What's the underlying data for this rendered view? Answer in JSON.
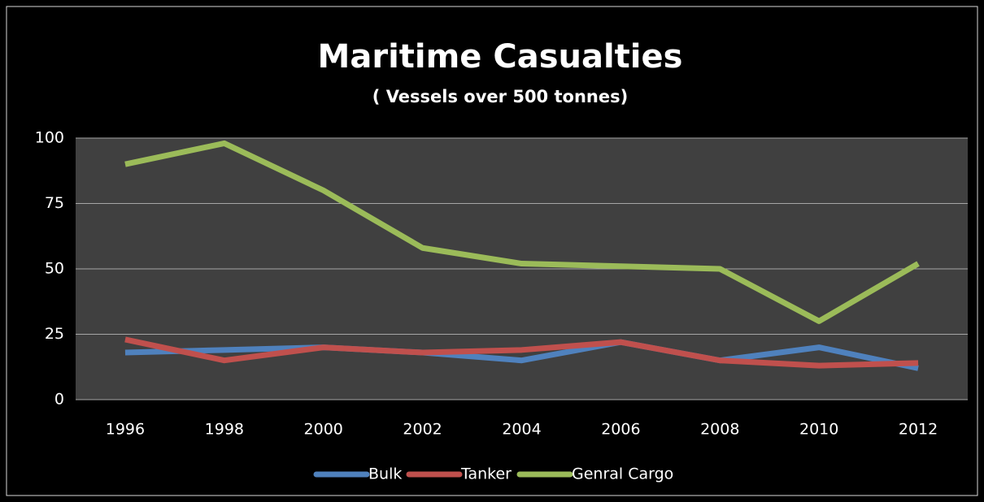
{
  "chart_data": {
    "type": "line",
    "title": "Maritime Casualties",
    "subtitle": "( Vessels over 500 tonnes)",
    "categories": [
      "1996",
      "1998",
      "2000",
      "2002",
      "2004",
      "2006",
      "2008",
      "2010",
      "2012"
    ],
    "series": [
      {
        "name": "Bulk",
        "color": "#4f81bd",
        "values": [
          18,
          19,
          20,
          18,
          15,
          22,
          15,
          20,
          12
        ]
      },
      {
        "name": "Tanker",
        "color": "#c0504d",
        "values": [
          23,
          15,
          20,
          18,
          19,
          22,
          15,
          13,
          14
        ]
      },
      {
        "name": "Genral Cargo",
        "color": "#9bbb59",
        "values": [
          90,
          98,
          80,
          58,
          52,
          51,
          50,
          30,
          52
        ]
      }
    ],
    "ylim": [
      0,
      100
    ],
    "yticks": [
      0,
      25,
      50,
      75,
      100
    ],
    "grid": true,
    "legend": "bottom"
  }
}
